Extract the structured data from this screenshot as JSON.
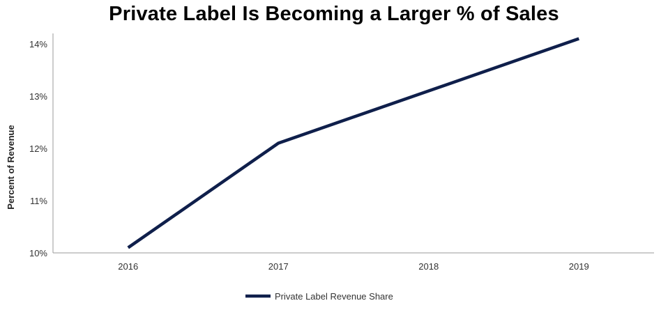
{
  "chart_data": {
    "type": "line",
    "title": "Private Label Is Becoming a Larger % of Sales",
    "ylabel": "Percent of Revenue",
    "xlabel": "",
    "categories": [
      "2016",
      "2017",
      "2018",
      "2019"
    ],
    "yticks": [
      "10%",
      "11%",
      "12%",
      "13%",
      "14%"
    ],
    "ylim": [
      10,
      14.2
    ],
    "series": [
      {
        "name": "Private Label Revenue Share",
        "values": [
          10.1,
          12.1,
          13.1,
          14.1
        ],
        "color": "#0f1f4b"
      }
    ],
    "grid": false,
    "legend_position": "bottom"
  }
}
